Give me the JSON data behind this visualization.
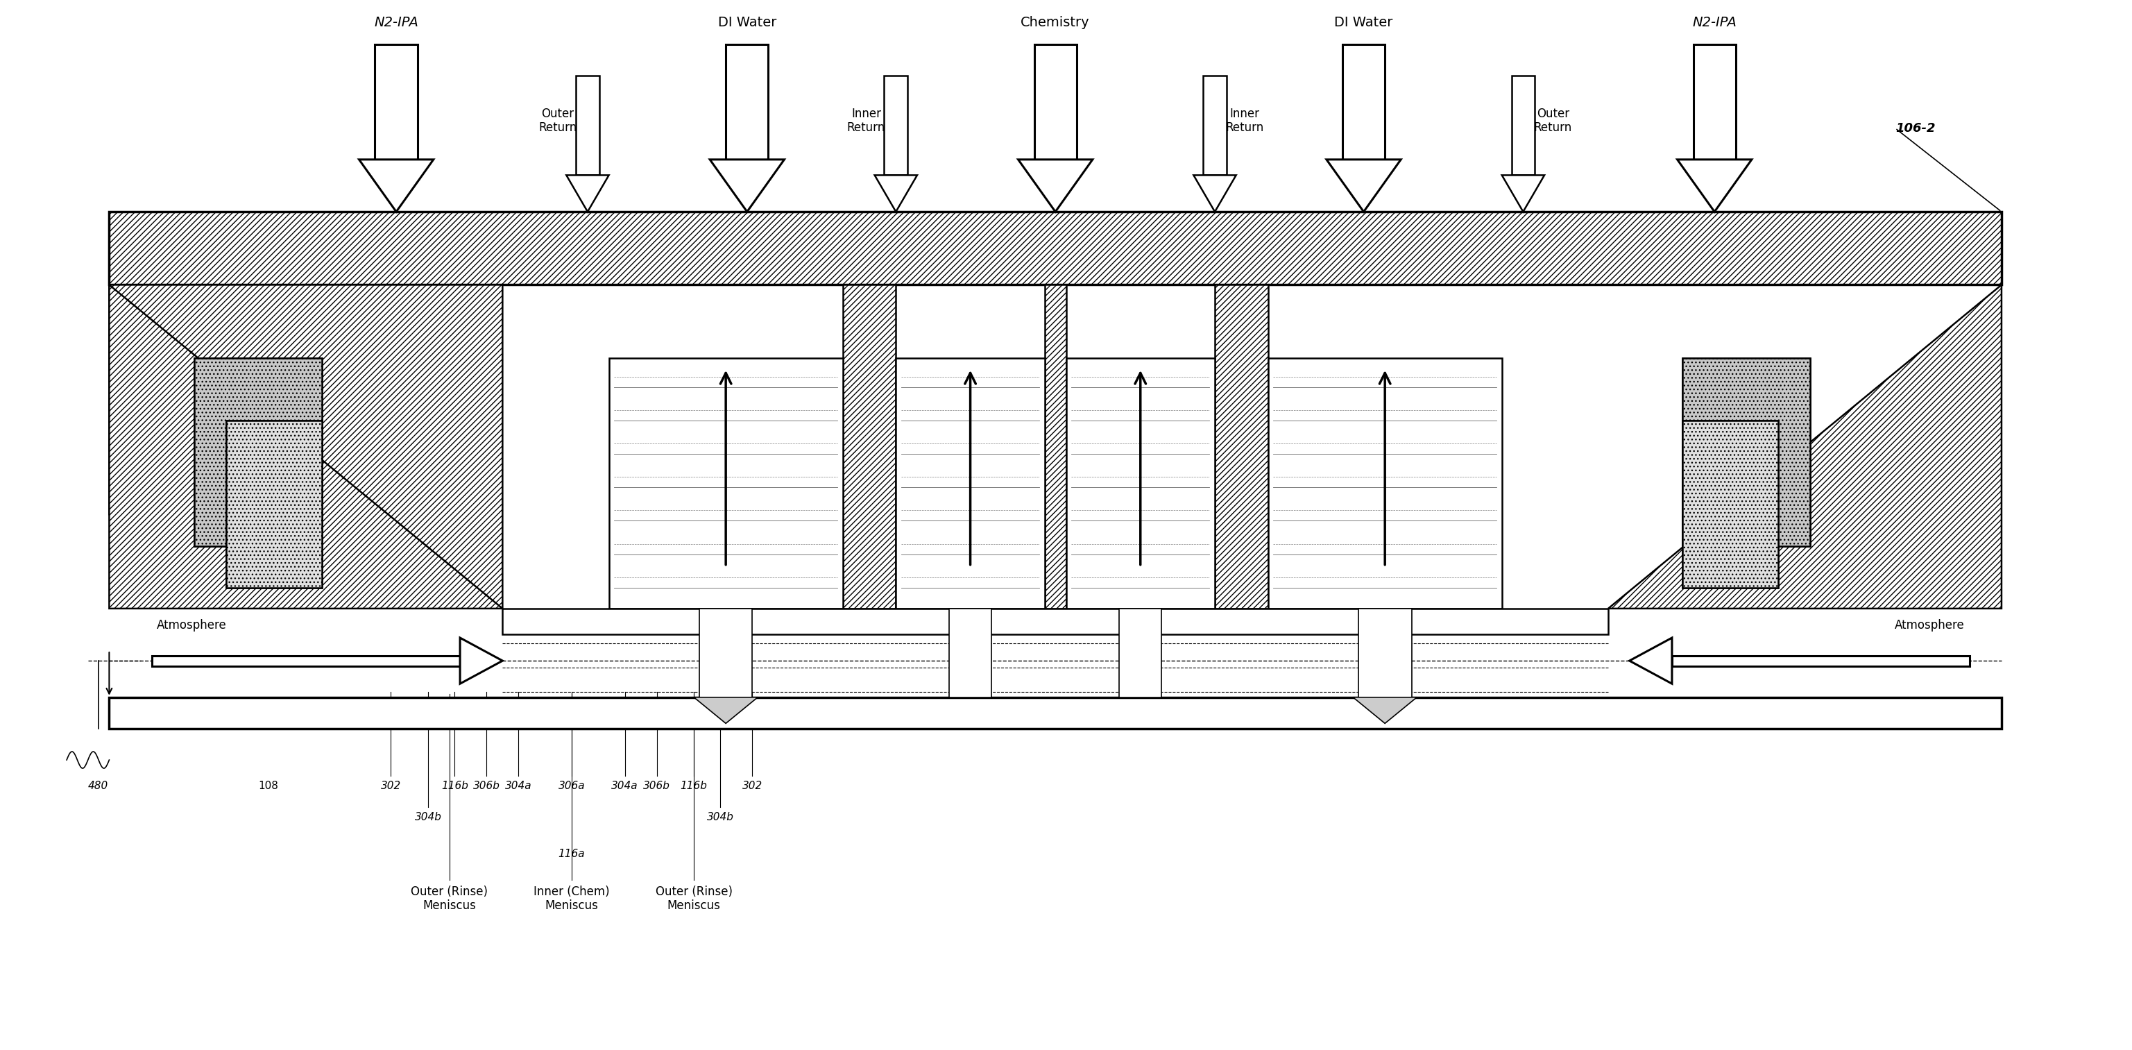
{
  "fig_width": 30.73,
  "fig_height": 15.13,
  "bg_color": "#ffffff",
  "line_color": "#000000",
  "labels": {
    "n2_ipa_left": "N2-IPA",
    "n2_ipa_right": "N2-IPA",
    "di_water_left": "DI Water",
    "di_water_right": "DI Water",
    "chemistry": "Chemistry",
    "outer_return_left": "Outer\nReturn",
    "outer_return_right": "Outer\nReturn",
    "inner_return_left": "Inner\nReturn",
    "inner_return_right": "Inner\nReturn",
    "atmosphere_left": "Atmosphere",
    "atmosphere_right": "Atmosphere",
    "ref_106_2": "106-2",
    "ref_480": "480",
    "ref_108": "108",
    "outer_rinse_left": "Outer (Rinse)\nMeniscus",
    "outer_rinse_right": "Outer (Rinse)\nMeniscus",
    "inner_chem": "Inner (Chem)\nMeniscus"
  },
  "bottom_labels": [
    [
      36.5,
      "302"
    ],
    [
      42.5,
      "116b"
    ],
    [
      45.5,
      "306b"
    ],
    [
      48.5,
      "304a"
    ],
    [
      40.0,
      "304b"
    ],
    [
      53.5,
      "306a"
    ],
    [
      58.5,
      "304a"
    ],
    [
      61.5,
      "306b"
    ],
    [
      65.0,
      "116b"
    ],
    [
      70.5,
      "302"
    ],
    [
      67.5,
      "304b"
    ],
    [
      53.5,
      "116a"
    ]
  ]
}
